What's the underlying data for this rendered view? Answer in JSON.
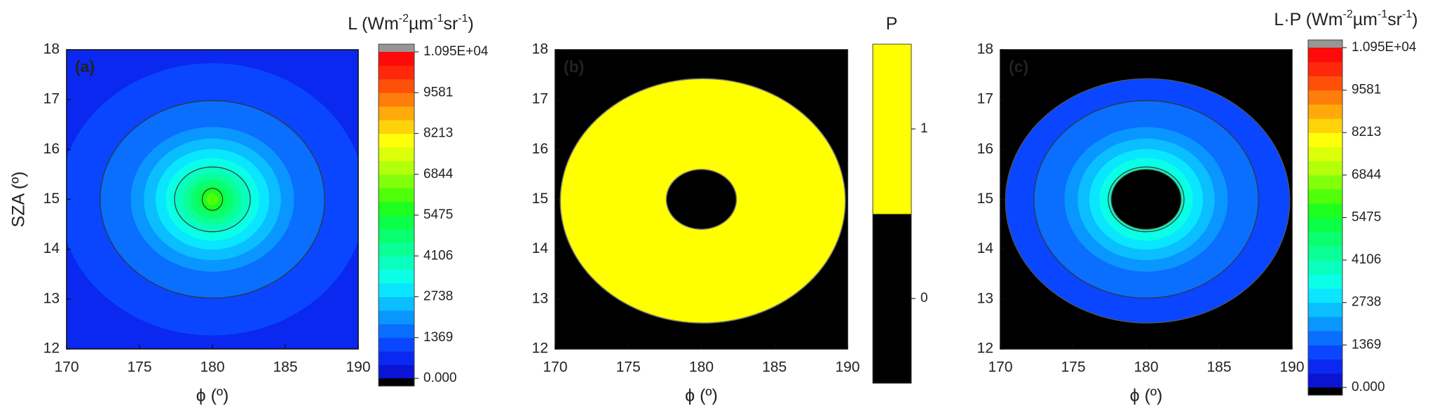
{
  "chart_data": [
    {
      "type": "contour",
      "panel_label": "(a)",
      "x_label": "ϕ (º)",
      "y_label": "SZA (º)",
      "xlim": [
        170,
        190
      ],
      "xticks": [
        170,
        175,
        180,
        185,
        190
      ],
      "ylim": [
        12,
        18
      ],
      "yticks": [
        12,
        13,
        14,
        15,
        16,
        17,
        18
      ],
      "center": [
        180,
        15
      ],
      "background_value": 550,
      "rings": [
        {
          "rx": 14,
          "ry": 3.64,
          "value": 700
        },
        {
          "rx": 12,
          "ry": 3.12,
          "value": 850
        },
        {
          "rx": 10.5,
          "ry": 2.73,
          "value": 1000
        },
        {
          "rx": 9,
          "ry": 2.34,
          "value": 1150
        },
        {
          "rx": 7.7,
          "ry": 1.98,
          "value": 1400,
          "line": true
        },
        {
          "rx": 6.6,
          "ry": 1.71,
          "value": 1700
        },
        {
          "rx": 5.6,
          "ry": 1.45,
          "value": 2100
        },
        {
          "rx": 4.7,
          "ry": 1.22,
          "value": 2500
        },
        {
          "rx": 3.9,
          "ry": 1.01,
          "value": 2900
        },
        {
          "rx": 3.2,
          "ry": 0.83,
          "value": 3300
        },
        {
          "rx": 2.6,
          "ry": 0.65,
          "value": 3800,
          "line": true
        },
        {
          "rx": 2.0,
          "ry": 0.52,
          "value": 4300
        },
        {
          "rx": 1.5,
          "ry": 0.39,
          "value": 4700
        },
        {
          "rx": 1.0,
          "ry": 0.27,
          "value": 5300
        },
        {
          "rx": 0.7,
          "ry": 0.22,
          "value": 5800,
          "line": true
        },
        {
          "rx": 0.4,
          "ry": 0.12,
          "value": 6200
        }
      ],
      "colorbar": {
        "title": [
          "L (Wm",
          "-2",
          "µm",
          "-1",
          "sr",
          "-1",
          ")"
        ],
        "clim": [
          0,
          10950
        ],
        "ticks": [
          {
            "value": 0,
            "label": "0.000"
          },
          1369,
          2738,
          4106,
          5475,
          6844,
          8213,
          9581,
          {
            "value": 10950,
            "label": "1.095E+04"
          }
        ],
        "colors": [
          "#0a14d2",
          "#0a28f0",
          "#0a46ff",
          "#0a6eff",
          "#0a96ff",
          "#0abeff",
          "#0ae6ff",
          "#0affe6",
          "#0affbe",
          "#0aff96",
          "#0aff6e",
          "#0aff46",
          "#1eff1e",
          "#50ff0a",
          "#82ff0a",
          "#b4ff0a",
          "#dcff0a",
          "#ffff0a",
          "#ffd20a",
          "#ffaa0a",
          "#ff7d0a",
          "#ff500a",
          "#ff280a",
          "#ff0a0a"
        ],
        "under_color": "#000000",
        "over_color": "#969696"
      }
    },
    {
      "type": "mask",
      "panel_label": "(b)",
      "x_label": "ϕ (º)",
      "xlim": [
        170,
        190
      ],
      "xticks": [
        170,
        175,
        180,
        185,
        190
      ],
      "ylim": [
        12,
        18
      ],
      "yticks": [
        12,
        13,
        14,
        15,
        16,
        17,
        18
      ],
      "background_value": 0,
      "mask": {
        "outer": {
          "cx": 180.1,
          "cy": 14.97,
          "rx": 9.75,
          "ry": 2.45
        },
        "inner": {
          "cx": 180,
          "cy": 15,
          "rx": 2.4,
          "ry": 0.6
        },
        "value": 1
      },
      "colorbar": {
        "title": [
          "P"
        ],
        "clim": [
          -0.5,
          1.5
        ],
        "ticks": [
          0,
          1
        ],
        "colors": [
          "#000000",
          "#ffff00"
        ]
      }
    },
    {
      "type": "masked_contour",
      "panel_label": "(c)",
      "x_label": "ϕ (º)",
      "xlim": [
        170,
        190
      ],
      "xticks": [
        170,
        175,
        180,
        185,
        190
      ],
      "ylim": [
        12,
        18
      ],
      "yticks": [
        12,
        13,
        14,
        15,
        16,
        17,
        18
      ],
      "colorbar": {
        "title": [
          "L·P (Wm",
          "-2",
          "µm",
          "-1",
          "sr",
          "-1",
          ")"
        ],
        "clim": [
          0,
          10950
        ],
        "ticks": [
          {
            "value": 0,
            "label": "0.000"
          },
          1369,
          2738,
          4106,
          5475,
          6844,
          8213,
          9581,
          {
            "value": 10950,
            "label": "1.095E+04"
          }
        ],
        "colors": [
          "#0a14d2",
          "#0a28f0",
          "#0a46ff",
          "#0a6eff",
          "#0a96ff",
          "#0abeff",
          "#0ae6ff",
          "#0affe6",
          "#0affbe",
          "#0aff96",
          "#0aff6e",
          "#0aff46",
          "#1eff1e",
          "#50ff0a",
          "#82ff0a",
          "#b4ff0a",
          "#dcff0a",
          "#ffff0a",
          "#ffd20a",
          "#ffaa0a",
          "#ff7d0a",
          "#ff500a",
          "#ff280a",
          "#ff0a0a"
        ],
        "under_color": "#000000",
        "over_color": "#969696"
      }
    }
  ]
}
